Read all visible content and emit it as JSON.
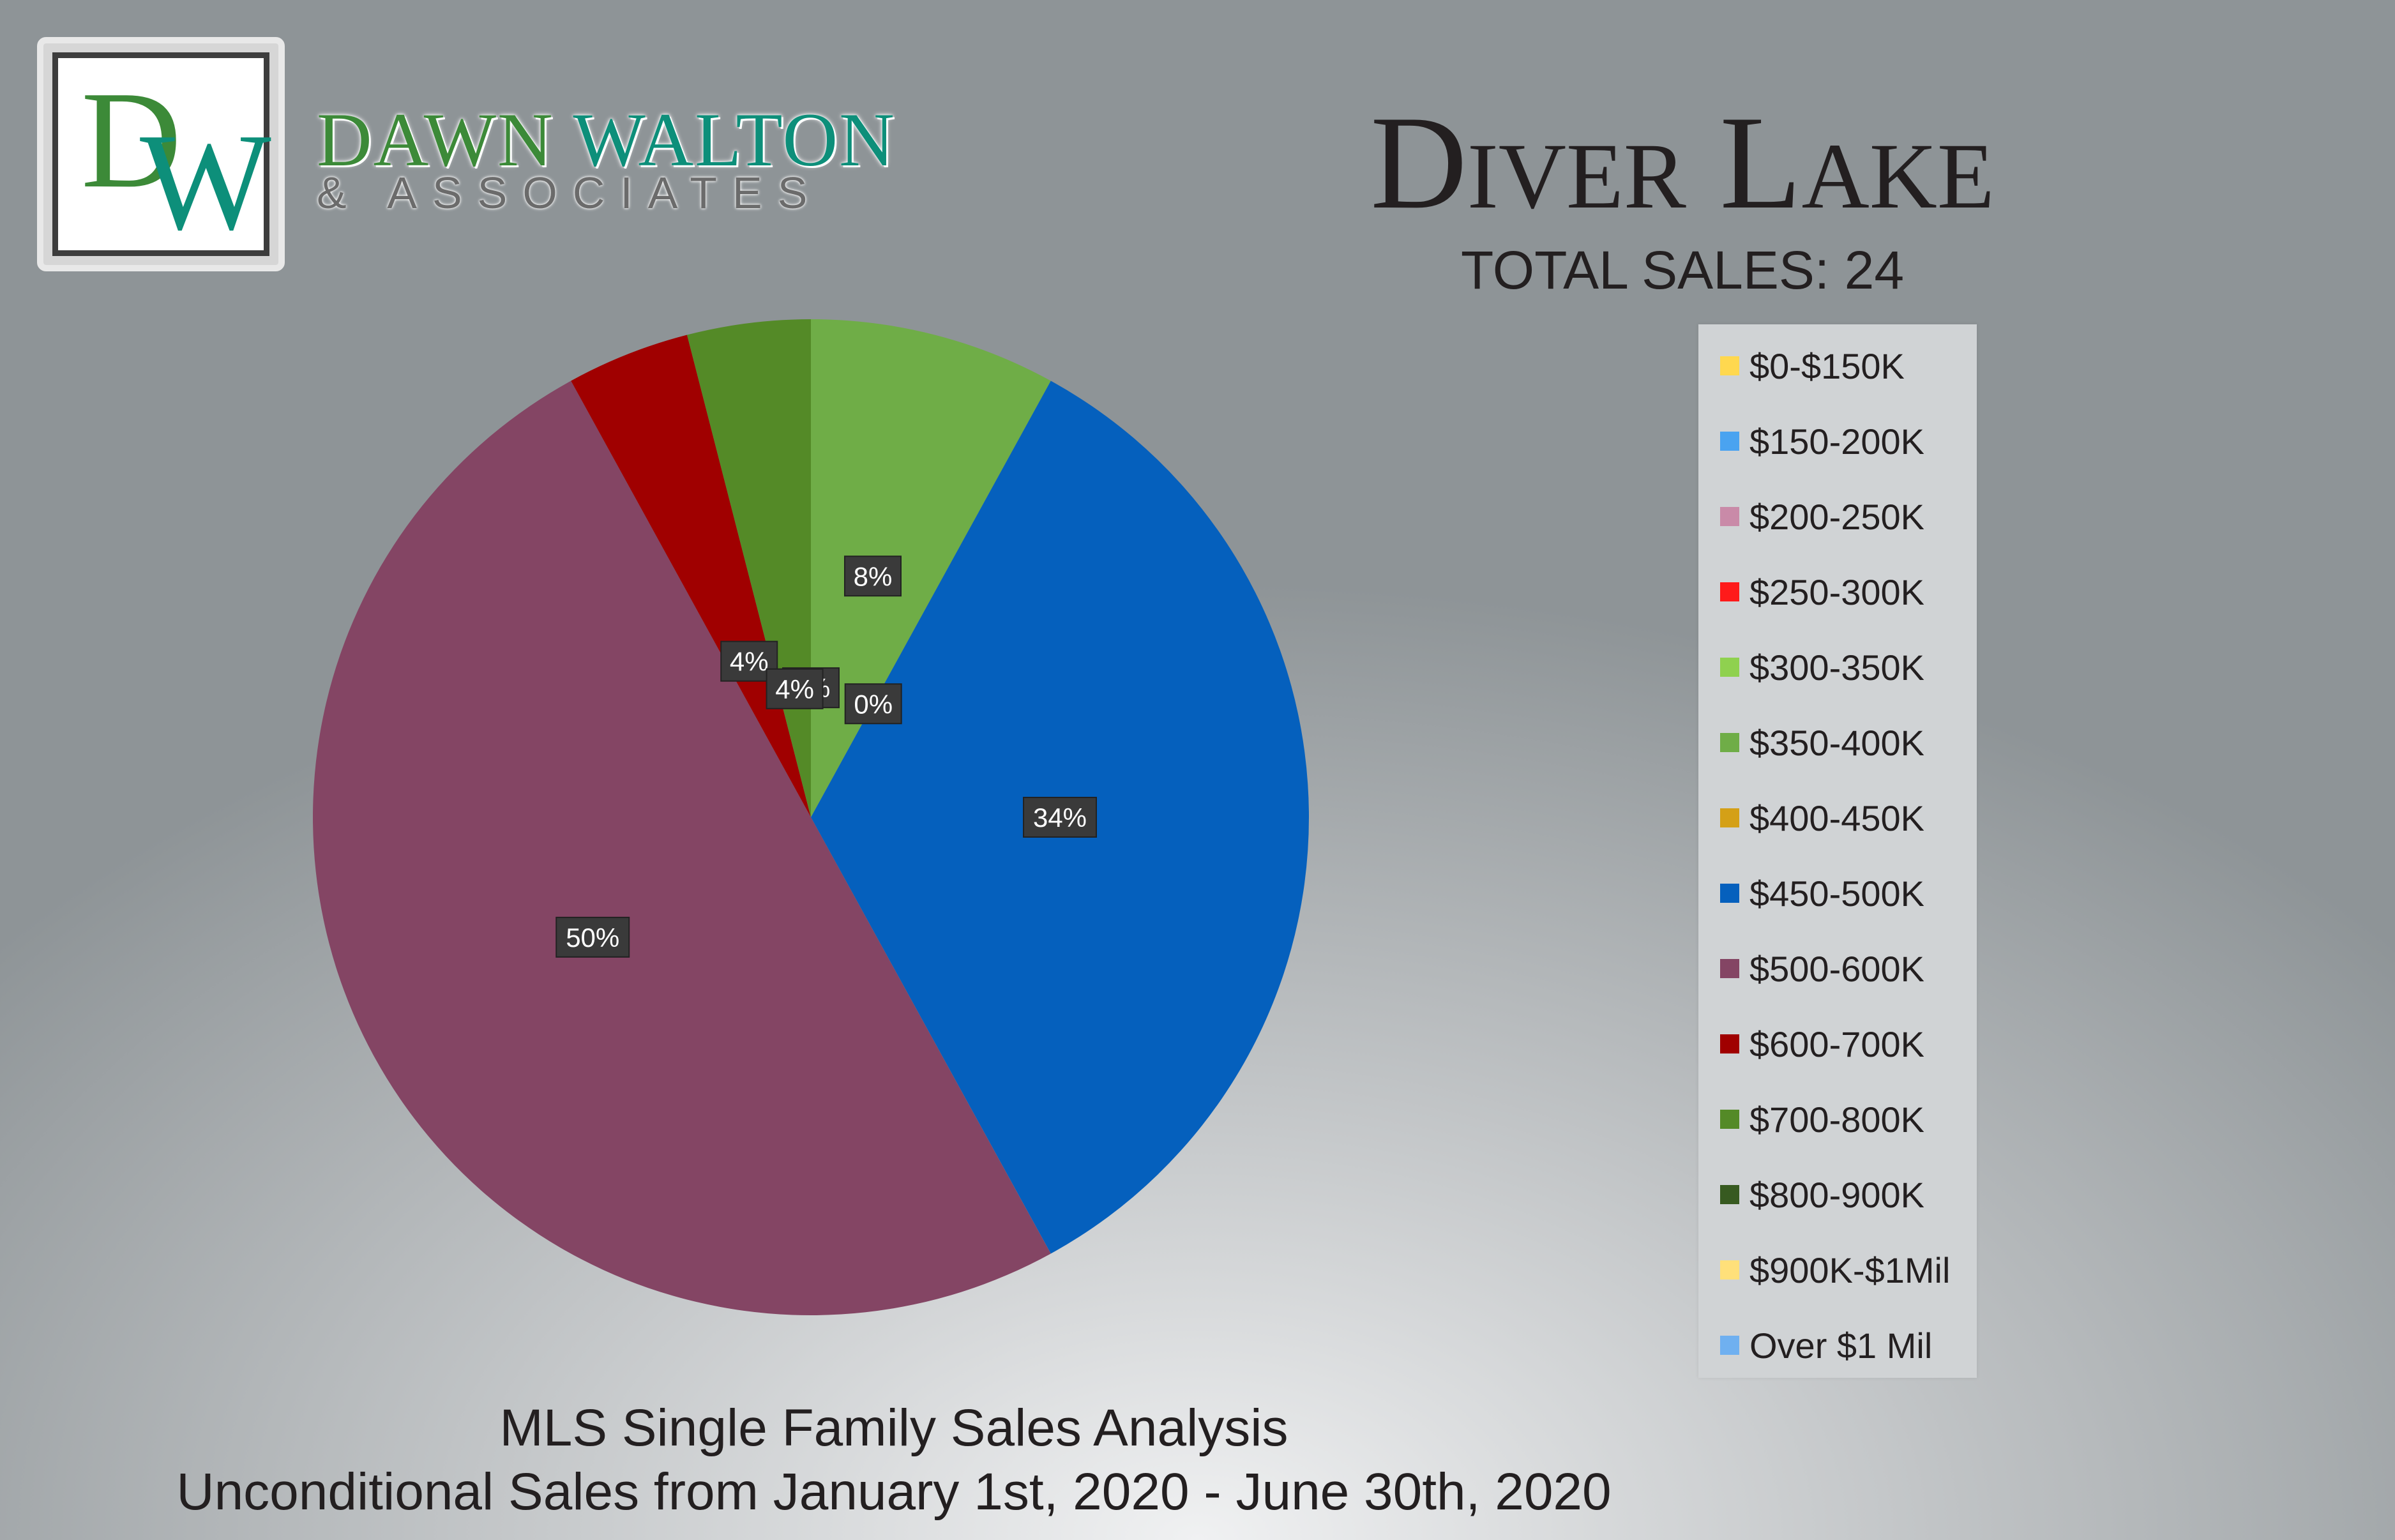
{
  "brand": {
    "logo_letters": "DW",
    "name_part1": "DAWN",
    "name_part2": "WALTON",
    "subtitle": "& ASSOCIATES"
  },
  "colors": {
    "brand_green": "#3c8a38",
    "brand_teal": "#0d8f7a"
  },
  "chart_data": {
    "type": "pie",
    "title": "Diver Lake",
    "subtitle": "TOTAL SALES: 24",
    "legend_position": "right",
    "slices": [
      {
        "label": "$0-$150K",
        "value": 0,
        "color": "#ffd84f"
      },
      {
        "label": "$150-200K",
        "value": 0,
        "color": "#4aa3f0"
      },
      {
        "label": "$200-250K",
        "value": 0,
        "color": "#c98aa8"
      },
      {
        "label": "$250-300K",
        "value": 0,
        "color": "#ff1a1a"
      },
      {
        "label": "$300-350K",
        "value": 0,
        "color": "#8fd14f",
        "data_label": "0%"
      },
      {
        "label": "$350-400K",
        "value": 8,
        "color": "#6fad47",
        "data_label": "8%"
      },
      {
        "label": "$400-450K",
        "value": 0,
        "color": "#d4a017",
        "data_label": "0%"
      },
      {
        "label": "$450-500K",
        "value": 34,
        "color": "#0560bd",
        "data_label": "34%"
      },
      {
        "label": "$500-600K",
        "value": 50,
        "color": "#844564",
        "data_label": "50%"
      },
      {
        "label": "$600-700K",
        "value": 4,
        "color": "#a00000",
        "data_label": "4%"
      },
      {
        "label": "$700-800K",
        "value": 4,
        "color": "#548a27",
        "data_label": "4%"
      },
      {
        "label": "$800-900K",
        "value": 0,
        "color": "#375a20"
      },
      {
        "label": "$900K-$1Mil",
        "value": 0,
        "color": "#ffe07a"
      },
      {
        "label": "Over $1 Mil",
        "value": 0,
        "color": "#6fb0f0"
      }
    ]
  },
  "footer": {
    "line1": "MLS Single Family Sales Analysis",
    "line2": "Unconditional Sales from January 1st, 2020 - June 30th, 2020"
  }
}
